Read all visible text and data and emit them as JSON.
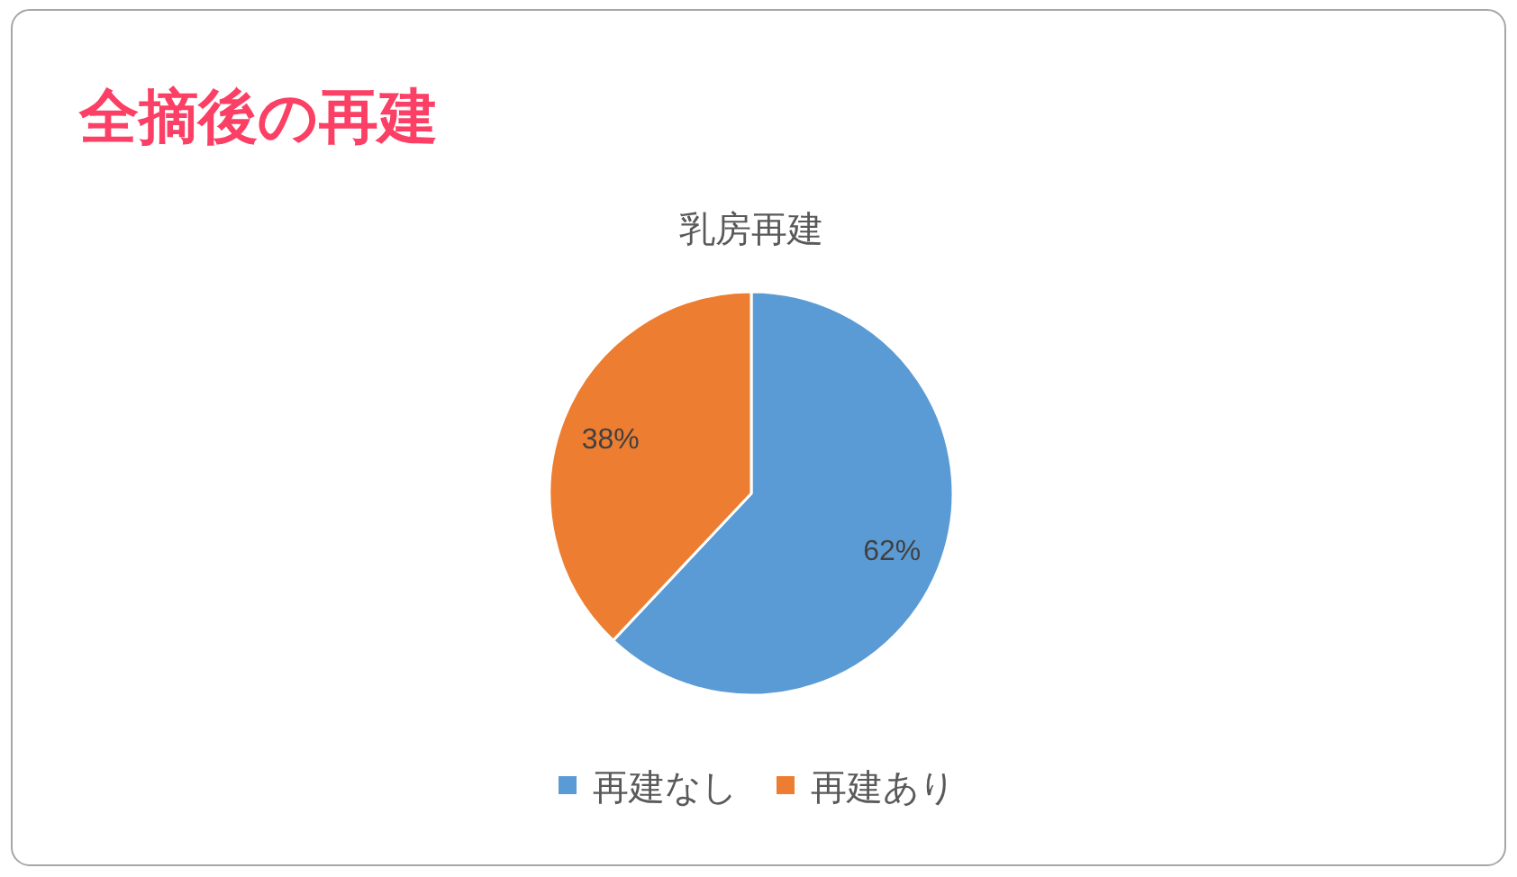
{
  "chart_data": {
    "type": "pie",
    "title": "全摘後の再建",
    "subtitle": "乳房再建",
    "categories": [
      "再建なし",
      "再建あり"
    ],
    "values": [
      62,
      38
    ],
    "colors": [
      "#5b9bd5",
      "#ed7d31"
    ],
    "value_labels": [
      "62%",
      "38%"
    ],
    "legend": "bottom"
  }
}
